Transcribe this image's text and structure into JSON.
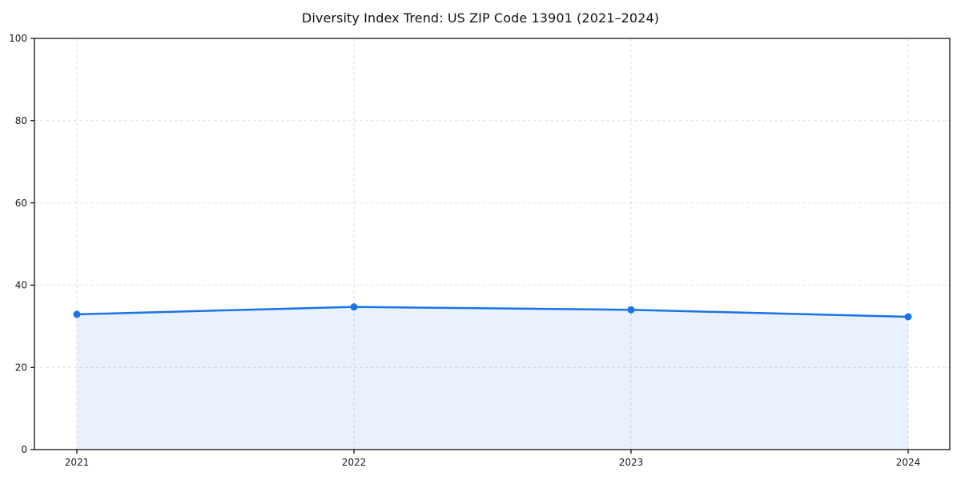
{
  "chart_data": {
    "type": "area",
    "title": "Diversity Index Trend: US ZIP Code 13901 (2021–2024)",
    "x": [
      "2021",
      "2022",
      "2023",
      "2024"
    ],
    "series": [
      {
        "name": "Diversity Index",
        "values": [
          32.9,
          34.7,
          34.0,
          32.3
        ]
      }
    ],
    "xlabel": "",
    "ylabel": "",
    "ylim": [
      0,
      100
    ],
    "yticks": [
      0,
      20,
      40,
      60,
      80,
      100
    ],
    "grid": {
      "style": "dashed",
      "axes": "both",
      "dash": "4 3"
    },
    "legend_position": "none",
    "marker": "circle",
    "colors": {
      "line": "#1a73e8",
      "marker": "#1a73e8",
      "fill": "rgba(26,115,232,0.10)",
      "grid": "#e0e0e0",
      "spine": "#000000",
      "tick_text": "#1a1a1a",
      "title_text": "#111111",
      "background": "#ffffff"
    }
  }
}
